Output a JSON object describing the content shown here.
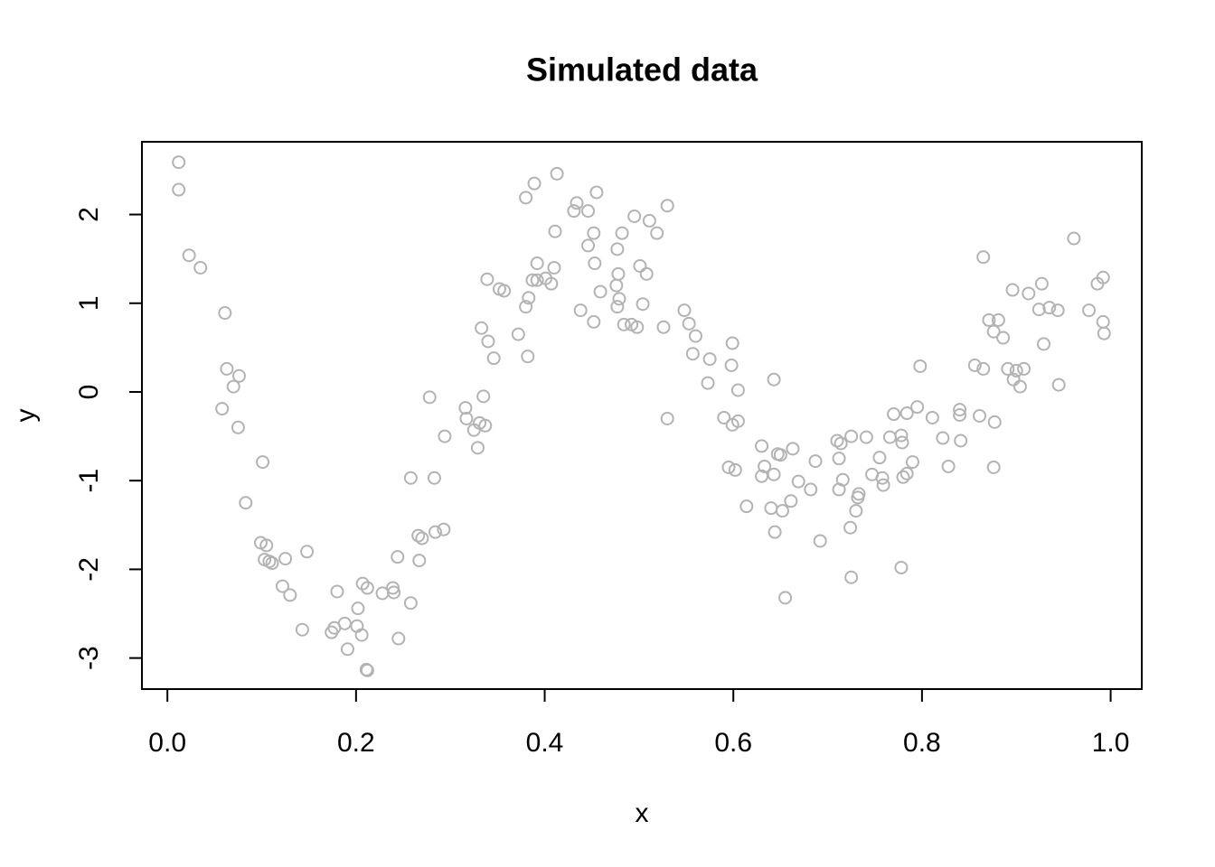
{
  "chart_data": {
    "type": "scatter",
    "title": "Simulated data",
    "x_label": "x",
    "y_label": "y",
    "color": "#b3b3b3",
    "xlim": [
      -0.027,
      1.033
    ],
    "ylim": [
      -3.35,
      2.82
    ],
    "xticks": [
      {
        "value": 0,
        "label": "0.0"
      },
      0.2,
      0.4,
      0.6,
      0.8,
      {
        "value": 1,
        "label": "1.0"
      }
    ],
    "yticks": [
      -3,
      -2,
      -1,
      0,
      1,
      2
    ],
    "x": [
      0.012,
      0.012,
      0.023,
      0.035,
      0.061,
      0.063,
      0.076,
      0.07,
      0.058,
      0.075,
      0.101,
      0.083,
      0.099,
      0.105,
      0.103,
      0.108,
      0.111,
      0.125,
      0.148,
      0.122,
      0.13,
      0.143,
      0.174,
      0.177,
      0.18,
      0.188,
      0.191,
      0.202,
      0.201,
      0.206,
      0.207,
      0.212,
      0.211,
      0.212,
      0.228,
      0.239,
      0.24,
      0.244,
      0.245,
      0.258,
      0.258,
      0.266,
      0.27,
      0.267,
      0.278,
      0.284,
      0.283,
      0.293,
      0.294,
      0.316,
      0.317,
      0.325,
      0.331,
      0.329,
      0.337,
      0.335,
      0.333,
      0.34,
      0.339,
      0.346,
      0.352,
      0.357,
      0.372,
      0.38,
      0.38,
      0.383,
      0.382,
      0.387,
      0.389,
      0.392,
      0.392,
      0.401,
      0.407,
      0.41,
      0.411,
      0.413,
      0.431,
      0.434,
      0.438,
      0.446,
      0.446,
      0.452,
      0.453,
      0.452,
      0.455,
      0.459,
      0.477,
      0.478,
      0.476,
      0.477,
      0.479,
      0.482,
      0.484,
      0.492,
      0.495,
      0.498,
      0.501,
      0.504,
      0.508,
      0.511,
      0.519,
      0.526,
      0.53,
      0.53,
      0.548,
      0.553,
      0.557,
      0.56,
      0.575,
      0.573,
      0.599,
      0.598,
      0.59,
      0.599,
      0.605,
      0.605,
      0.595,
      0.602,
      0.614,
      0.63,
      0.633,
      0.63,
      0.643,
      0.643,
      0.64,
      0.644,
      0.647,
      0.65,
      0.652,
      0.655,
      0.661,
      0.663,
      0.669,
      0.682,
      0.687,
      0.692,
      0.71,
      0.714,
      0.712,
      0.712,
      0.716,
      0.725,
      0.724,
      0.725,
      0.73,
      0.733,
      0.732,
      0.741,
      0.747,
      0.755,
      0.758,
      0.759,
      0.766,
      0.77,
      0.778,
      0.779,
      0.778,
      0.78,
      0.784,
      0.784,
      0.79,
      0.795,
      0.798,
      0.811,
      0.822,
      0.828,
      0.84,
      0.84,
      0.841,
      0.856,
      0.861,
      0.865,
      0.865,
      0.871,
      0.876,
      0.877,
      0.876,
      0.881,
      0.886,
      0.891,
      0.896,
      0.897,
      0.9,
      0.904,
      0.908,
      0.913,
      0.924,
      0.927,
      0.929,
      0.935,
      0.944,
      0.945,
      0.961,
      0.977,
      0.986,
      0.992,
      0.992,
      0.993
    ],
    "values": [
      2.59,
      2.28,
      1.54,
      1.4,
      0.89,
      0.26,
      0.18,
      0.06,
      -0.19,
      -0.4,
      -0.79,
      -1.25,
      -1.7,
      -1.73,
      -1.89,
      -1.91,
      -1.93,
      -1.88,
      -1.8,
      -2.19,
      -2.29,
      -2.68,
      -2.71,
      -2.66,
      -2.25,
      -2.61,
      -2.9,
      -2.44,
      -2.64,
      -2.74,
      -2.16,
      -2.21,
      -3.13,
      -3.14,
      -2.27,
      -2.21,
      -2.26,
      -1.86,
      -2.78,
      -2.38,
      -0.97,
      -1.62,
      -1.65,
      -1.9,
      -0.06,
      -1.58,
      -0.97,
      -1.55,
      -0.5,
      -0.18,
      -0.3,
      -0.43,
      -0.35,
      -0.63,
      -0.38,
      -0.05,
      0.72,
      0.57,
      1.27,
      0.38,
      1.16,
      1.14,
      0.65,
      2.19,
      0.96,
      1.06,
      0.4,
      1.26,
      2.35,
      1.45,
      1.26,
      1.28,
      1.22,
      1.4,
      1.81,
      2.46,
      2.04,
      2.13,
      0.92,
      2.04,
      1.65,
      1.79,
      1.45,
      0.79,
      2.25,
      1.13,
      1.61,
      1.33,
      1.2,
      0.96,
      1.05,
      1.79,
      0.76,
      0.76,
      1.98,
      0.73,
      1.42,
      0.99,
      1.33,
      1.93,
      1.79,
      0.73,
      2.1,
      -0.3,
      0.92,
      0.77,
      0.43,
      0.63,
      0.37,
      0.1,
      0.55,
      0.3,
      -0.29,
      -0.37,
      0.02,
      -0.33,
      -0.85,
      -0.88,
      -1.29,
      -0.61,
      -0.84,
      -0.95,
      0.14,
      -0.93,
      -1.31,
      -1.58,
      -0.7,
      -0.71,
      -1.34,
      -2.32,
      -1.23,
      -0.64,
      -1.01,
      -1.1,
      -0.78,
      -1.68,
      -0.55,
      -0.58,
      -0.75,
      -1.1,
      -0.99,
      -0.5,
      -1.53,
      -2.09,
      -1.34,
      -1.15,
      -1.19,
      -0.51,
      -0.93,
      -0.74,
      -0.97,
      -1.05,
      -0.51,
      -0.25,
      -0.49,
      -0.57,
      -1.98,
      -0.96,
      -0.24,
      -0.92,
      -0.79,
      -0.17,
      0.29,
      -0.29,
      -0.52,
      -0.84,
      -0.2,
      -0.26,
      -0.55,
      0.3,
      -0.27,
      1.52,
      0.26,
      0.81,
      0.68,
      -0.34,
      -0.85,
      0.81,
      0.61,
      0.26,
      1.15,
      0.14,
      0.24,
      0.06,
      0.26,
      1.11,
      0.93,
      1.22,
      0.54,
      0.95,
      0.92,
      0.08,
      1.73,
      0.92,
      1.22,
      1.29,
      0.79,
      0.66
    ]
  }
}
